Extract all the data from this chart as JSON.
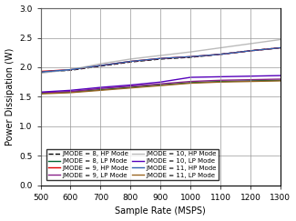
{
  "x": [
    500,
    600,
    700,
    800,
    900,
    1000,
    1100,
    1200,
    1300
  ],
  "hp_lines": {
    "JMODE = 8": [
      1.92,
      1.95,
      2.02,
      2.09,
      2.14,
      2.17,
      2.22,
      2.28,
      2.33
    ],
    "JMODE = 9": [
      1.93,
      1.96,
      2.03,
      2.1,
      2.15,
      2.18,
      2.22,
      2.28,
      2.33
    ],
    "JMODE = 10": [
      1.9,
      1.96,
      2.06,
      2.14,
      2.2,
      2.26,
      2.33,
      2.4,
      2.47
    ],
    "JMODE = 11": [
      1.92,
      1.96,
      2.03,
      2.1,
      2.15,
      2.18,
      2.22,
      2.28,
      2.33
    ]
  },
  "lp_lines": {
    "JMODE = 8": [
      1.56,
      1.58,
      1.62,
      1.66,
      1.7,
      1.74,
      1.76,
      1.77,
      1.78
    ],
    "JMODE = 9": [
      1.57,
      1.59,
      1.64,
      1.68,
      1.72,
      1.76,
      1.78,
      1.79,
      1.8
    ],
    "JMODE = 10": [
      1.58,
      1.61,
      1.66,
      1.7,
      1.75,
      1.83,
      1.84,
      1.85,
      1.86
    ],
    "JMODE = 11": [
      1.55,
      1.57,
      1.61,
      1.65,
      1.69,
      1.73,
      1.75,
      1.76,
      1.77
    ]
  },
  "hp_colors": {
    "JMODE = 8": "#000000",
    "JMODE = 9": "#dd0000",
    "JMODE = 10": "#bbbbbb",
    "JMODE = 11": "#3060b0"
  },
  "lp_colors": {
    "JMODE = 8": "#006633",
    "JMODE = 9": "#882288",
    "JMODE = 10": "#5500bb",
    "JMODE = 11": "#996622"
  },
  "hp_ls": {
    "JMODE = 8": "--",
    "JMODE = 9": "-",
    "JMODE = 10": "-",
    "JMODE = 11": "-"
  },
  "xlabel": "Sample Rate (MSPS)",
  "ylabel": "Power Dissipation (W)",
  "xlim": [
    500,
    1300
  ],
  "ylim": [
    0,
    3
  ],
  "xticks": [
    500,
    600,
    700,
    800,
    900,
    1000,
    1100,
    1200,
    1300
  ],
  "yticks": [
    0,
    0.5,
    1,
    1.5,
    2,
    2.5,
    3
  ],
  "legend_labels_hp": [
    "JMODE = 8, HP Mode",
    "JMODE = 9, HP Mode",
    "JMODE = 10, HP Mode",
    "JMODE = 11, HP Mode"
  ],
  "legend_labels_lp": [
    "JMODE = 8, LP Mode",
    "JMODE = 9, LP Mode",
    "JMODE = 10, LP Mode",
    "JMODE = 11, LP Mode"
  ],
  "legend_hp_colors": [
    "#000000",
    "#dd0000",
    "#bbbbbb",
    "#3060b0"
  ],
  "legend_lp_colors": [
    "#006633",
    "#882288",
    "#5500bb",
    "#996622"
  ],
  "legend_hp_ls": [
    "--",
    "-",
    "-",
    "-"
  ]
}
